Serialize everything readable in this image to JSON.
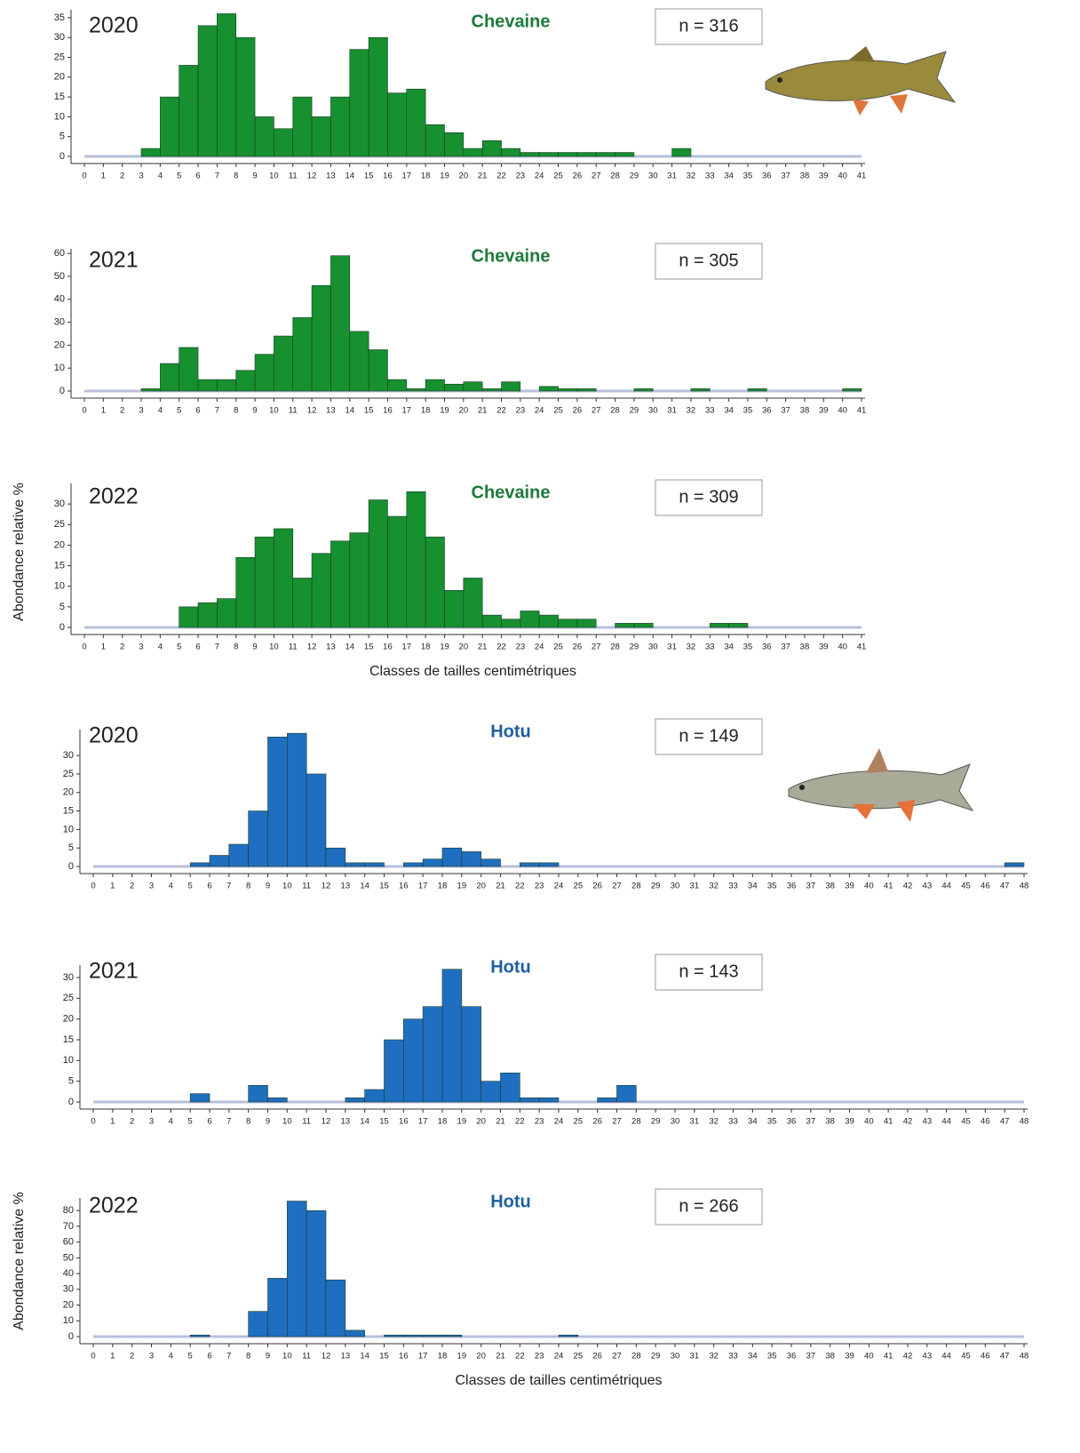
{
  "chart_data": [
    {
      "type": "histogram",
      "title": "Chevaine",
      "year": "2020",
      "annotation": "n = 316",
      "color": "#17902f",
      "bins": [
        0,
        1,
        2,
        3,
        4,
        5,
        6,
        7,
        8,
        9,
        10,
        11,
        12,
        13,
        14,
        15,
        16,
        17,
        18,
        19,
        20,
        21,
        22,
        23,
        24,
        25,
        26,
        27,
        28,
        29,
        30,
        31,
        32,
        33,
        34,
        35,
        36,
        37,
        38,
        39,
        40,
        41
      ],
      "counts": [
        0,
        0,
        0,
        2,
        15,
        23,
        33,
        36,
        30,
        10,
        7,
        15,
        10,
        15,
        27,
        30,
        16,
        17,
        8,
        6,
        2,
        4,
        2,
        1,
        1,
        1,
        1,
        1,
        1,
        0,
        0,
        2,
        0,
        0,
        0,
        0,
        0,
        0,
        0,
        0,
        0
      ],
      "xlim": [
        0,
        41
      ],
      "ylim": [
        0,
        37
      ],
      "yticks": [
        0,
        5,
        10,
        15,
        20,
        25,
        30,
        35
      ]
    },
    {
      "type": "histogram",
      "title": "Chevaine",
      "year": "2021",
      "annotation": "n = 305",
      "color": "#17902f",
      "bins": [
        0,
        1,
        2,
        3,
        4,
        5,
        6,
        7,
        8,
        9,
        10,
        11,
        12,
        13,
        14,
        15,
        16,
        17,
        18,
        19,
        20,
        21,
        22,
        23,
        24,
        25,
        26,
        27,
        28,
        29,
        30,
        31,
        32,
        33,
        34,
        35,
        36,
        37,
        38,
        39,
        40,
        41
      ],
      "counts": [
        0,
        0,
        0,
        1,
        12,
        19,
        5,
        5,
        9,
        16,
        24,
        32,
        46,
        59,
        26,
        18,
        5,
        1,
        5,
        3,
        4,
        1,
        4,
        0,
        2,
        1,
        1,
        0,
        0,
        1,
        0,
        0,
        1,
        0,
        0,
        1,
        0,
        0,
        0,
        0,
        1
      ],
      "xlim": [
        0,
        41
      ],
      "ylim": [
        0,
        62
      ],
      "yticks": [
        0,
        10,
        20,
        30,
        40,
        50,
        60
      ]
    },
    {
      "type": "histogram",
      "title": "Chevaine",
      "year": "2022",
      "annotation": "n = 309",
      "color": "#17902f",
      "xlabel": "Classes de tailles centimétriques",
      "ylabel": "Abondance relative %",
      "bins": [
        0,
        1,
        2,
        3,
        4,
        5,
        6,
        7,
        8,
        9,
        10,
        11,
        12,
        13,
        14,
        15,
        16,
        17,
        18,
        19,
        20,
        21,
        22,
        23,
        24,
        25,
        26,
        27,
        28,
        29,
        30,
        31,
        32,
        33,
        34,
        35,
        36,
        37,
        38,
        39,
        40,
        41
      ],
      "counts": [
        0,
        0,
        0,
        0,
        0,
        5,
        6,
        7,
        17,
        22,
        24,
        12,
        18,
        21,
        23,
        31,
        27,
        33,
        22,
        9,
        12,
        3,
        2,
        4,
        3,
        2,
        2,
        0,
        1,
        1,
        0,
        0,
        0,
        1,
        1,
        0,
        0,
        0,
        0,
        0,
        0
      ],
      "xlim": [
        0,
        41
      ],
      "ylim": [
        0,
        35
      ],
      "yticks": [
        0,
        5,
        10,
        15,
        20,
        25,
        30
      ]
    },
    {
      "type": "histogram",
      "title": "Hotu",
      "year": "2020",
      "annotation": "n = 149",
      "color": "#1f6fc0",
      "bins": [
        0,
        1,
        2,
        3,
        4,
        5,
        6,
        7,
        8,
        9,
        10,
        11,
        12,
        13,
        14,
        15,
        16,
        17,
        18,
        19,
        20,
        21,
        22,
        23,
        24,
        25,
        26,
        27,
        28,
        29,
        30,
        31,
        32,
        33,
        34,
        35,
        36,
        37,
        38,
        39,
        40,
        41,
        42,
        43,
        44,
        45,
        46,
        47,
        48
      ],
      "counts": [
        0,
        0,
        0,
        0,
        0,
        1,
        3,
        6,
        15,
        35,
        36,
        25,
        5,
        1,
        1,
        0,
        1,
        2,
        5,
        4,
        2,
        0,
        1,
        1,
        0,
        0,
        0,
        0,
        0,
        0,
        0,
        0,
        0,
        0,
        0,
        0,
        0,
        0,
        0,
        0,
        0,
        0,
        0,
        0,
        0,
        0,
        0,
        1
      ],
      "xlim": [
        0,
        48
      ],
      "ylim": [
        0,
        37
      ],
      "yticks": [
        0,
        5,
        10,
        15,
        20,
        25,
        30
      ]
    },
    {
      "type": "histogram",
      "title": "Hotu",
      "year": "2021",
      "annotation": "n = 143",
      "color": "#1f6fc0",
      "bins": [
        0,
        1,
        2,
        3,
        4,
        5,
        6,
        7,
        8,
        9,
        10,
        11,
        12,
        13,
        14,
        15,
        16,
        17,
        18,
        19,
        20,
        21,
        22,
        23,
        24,
        25,
        26,
        27,
        28,
        29,
        30,
        31,
        32,
        33,
        34,
        35,
        36,
        37,
        38,
        39,
        40,
        41,
        42,
        43,
        44,
        45,
        46,
        47,
        48
      ],
      "counts": [
        0,
        0,
        0,
        0,
        0,
        2,
        0,
        0,
        4,
        1,
        0,
        0,
        0,
        1,
        3,
        15,
        20,
        23,
        32,
        23,
        5,
        7,
        1,
        1,
        0,
        0,
        1,
        4,
        0,
        0,
        0,
        0,
        0,
        0,
        0,
        0,
        0,
        0,
        0,
        0,
        0,
        0,
        0,
        0,
        0,
        0,
        0,
        0
      ],
      "xlim": [
        0,
        48
      ],
      "ylim": [
        0,
        33
      ],
      "yticks": [
        0,
        5,
        10,
        15,
        20,
        25,
        30
      ]
    },
    {
      "type": "histogram",
      "title": "Hotu",
      "year": "2022",
      "annotation": "n = 266",
      "color": "#1f6fc0",
      "xlabel": "Classes de tailles centimétriques",
      "ylabel": "Abondance relative %",
      "bins": [
        0,
        1,
        2,
        3,
        4,
        5,
        6,
        7,
        8,
        9,
        10,
        11,
        12,
        13,
        14,
        15,
        16,
        17,
        18,
        19,
        20,
        21,
        22,
        23,
        24,
        25,
        26,
        27,
        28,
        29,
        30,
        31,
        32,
        33,
        34,
        35,
        36,
        37,
        38,
        39,
        40,
        41,
        42,
        43,
        44,
        45,
        46,
        47,
        48
      ],
      "counts": [
        0,
        0,
        0,
        0,
        0,
        1,
        0,
        0,
        16,
        37,
        86,
        80,
        36,
        4,
        0,
        1,
        1,
        1,
        1,
        0,
        0,
        0,
        0,
        0,
        1,
        0,
        0,
        0,
        0,
        0,
        0,
        0,
        0,
        0,
        0,
        0,
        0,
        0,
        0,
        0,
        0,
        0,
        0,
        0,
        0,
        0,
        0,
        0
      ],
      "xlim": [
        0,
        48
      ],
      "ylim": [
        0,
        88
      ],
      "yticks": [
        0,
        10,
        20,
        30,
        40,
        50,
        60,
        70,
        80
      ]
    }
  ]
}
